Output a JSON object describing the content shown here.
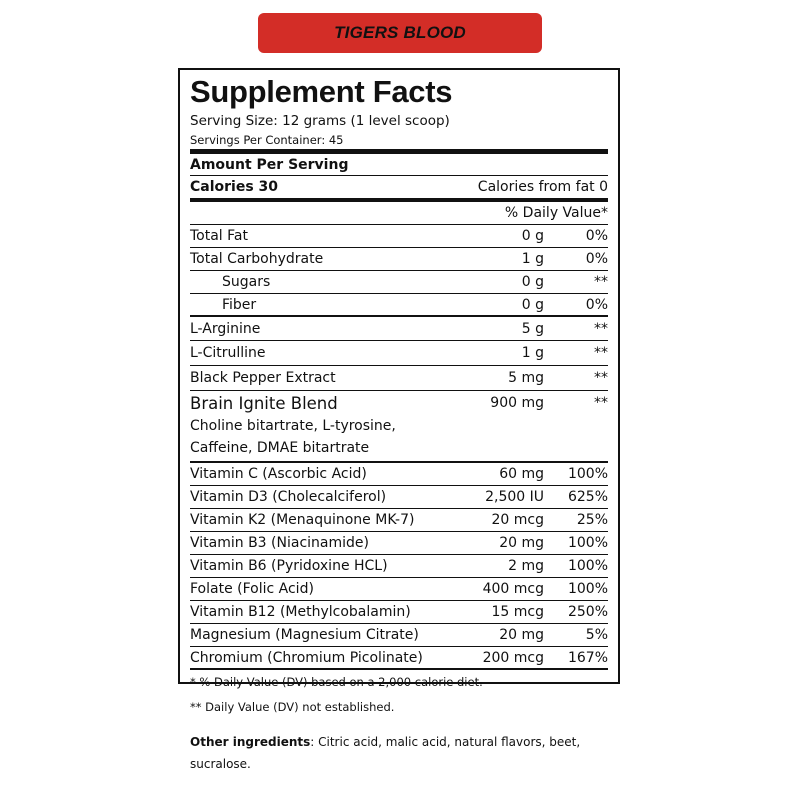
{
  "banner": {
    "text": "TIGERS BLOOD",
    "color": "#d32d27"
  },
  "facts": {
    "title": "Supplement Facts",
    "serving_size": "Serving Size: 12 grams (1 level scoop)",
    "servings_per_container": "Servings Per Container: 45",
    "amount_per_serving": "Amount Per Serving",
    "calories": "Calories 30",
    "calories_from_fat": "Calories from fat 0",
    "daily_value_header": "% Daily Value*",
    "nutrients": [
      {
        "name": "Total Fat",
        "amount": "0 g",
        "dv": "0%"
      },
      {
        "name": "Total Carbohydrate",
        "amount": "1 g",
        "dv": "0%"
      },
      {
        "name": "Sugars",
        "amount": "0 g",
        "dv": "**"
      },
      {
        "name": "Fiber",
        "amount": "0 g",
        "dv": "0%"
      },
      {
        "name": "L-Arginine",
        "amount": "5 g",
        "dv": "**"
      },
      {
        "name": "L-Citrulline",
        "amount": "1 g",
        "dv": "**"
      },
      {
        "name": "Black Pepper Extract",
        "amount": "5 mg",
        "dv": "**"
      }
    ],
    "blend": {
      "name": "Brain Ignite Blend",
      "amount": "900 mg",
      "dv": "**",
      "line1": "Choline bitartrate, L-tyrosine,",
      "line2": "Caffeine, DMAE bitartrate"
    },
    "vitamins": [
      {
        "name": "Vitamin C (Ascorbic Acid)",
        "amount": "60 mg",
        "dv": "100%"
      },
      {
        "name": "Vitamin D3 (Cholecalciferol)",
        "amount": "2,500 IU",
        "dv": "625%"
      },
      {
        "name": "Vitamin K2 (Menaquinone MK-7)",
        "amount": "20 mcg",
        "dv": "25%"
      },
      {
        "name": "Vitamin B3 (Niacinamide)",
        "amount": "20 mg",
        "dv": "100%"
      },
      {
        "name": "Vitamin B6 (Pyridoxine HCL)",
        "amount": "2 mg",
        "dv": "100%"
      },
      {
        "name": "Folate (Folic Acid)",
        "amount": "400 mcg",
        "dv": "100%"
      },
      {
        "name": "Vitamin B12 (Methylcobalamin)",
        "amount": "15 mcg",
        "dv": "250%"
      },
      {
        "name": "Magnesium (Magnesium Citrate)",
        "amount": "20 mg",
        "dv": "5%"
      },
      {
        "name": "Chromium (Chromium Picolinate)",
        "amount": "200 mcg",
        "dv": "167%"
      }
    ],
    "footnote1": "*  % Daily Value (DV) based on a 2,000 calorie diet.",
    "footnote2": "** Daily Value (DV) not established."
  },
  "other_ingredients": {
    "label": "Other ingredients",
    "text": ": Citric acid, malic acid, natural flavors, beet,",
    "text2": "sucralose."
  }
}
